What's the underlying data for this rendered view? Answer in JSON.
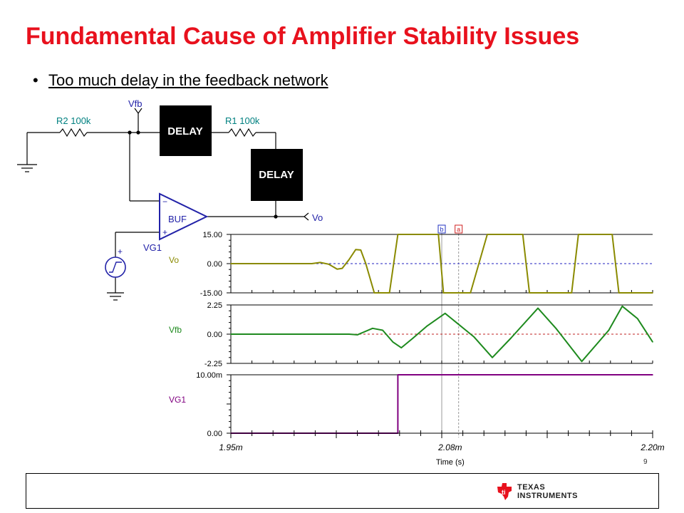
{
  "slide": {
    "title": "Fundamental Cause of Amplifier Stability Issues",
    "bullet": "Too much delay in the feedback network",
    "page_number": "9"
  },
  "schematic": {
    "r2_label": "R2 100k",
    "r1_label": "R1 100k",
    "vfb_label": "Vfb",
    "vo_label": "Vo",
    "delay_label": "DELAY",
    "buf_label": "BUF",
    "vg1_label": "VG1",
    "minus_sign": "−",
    "plus_sign": "+",
    "source_plus": "+"
  },
  "logo": {
    "line1": "TEXAS",
    "line2": "INSTRUMENTS"
  },
  "colors": {
    "title": "#e8111d",
    "vo": "#8a8a00",
    "vfb": "#1e8a1e",
    "vg1": "#800080",
    "schematic_blue": "#2222a8",
    "teal_labels": "#008080",
    "cursor_a": "#d02020",
    "cursor_b": "#2030c0"
  },
  "chart_data": {
    "type": "line",
    "xlabel": "Time (s)",
    "xlim": [
      0.00195,
      0.0022
    ],
    "x_tick_labels": [
      {
        "value": 0.00195,
        "label": "1.95m"
      },
      {
        "value": 0.00208,
        "label": "2.08m"
      },
      {
        "value": 0.0022,
        "label": "2.20m"
      }
    ],
    "cursors": [
      {
        "label": "b",
        "x": 0.002075,
        "color": "#2030c0"
      },
      {
        "label": "a",
        "x": 0.002085,
        "color": "#d02020"
      }
    ],
    "panels": [
      {
        "name": "Vo",
        "ylim": [
          -15,
          15
        ],
        "y_tick_labels": [
          "15.00",
          "0.00",
          "-15.00"
        ],
        "y_tick_values": [
          15,
          0,
          -15
        ],
        "zero_line_color": "#2020c0",
        "color": "#8a8a00",
        "x": [
          0.00195,
          0.001998,
          0.002003,
          0.002008,
          0.002013,
          0.002016,
          0.00202,
          0.002024,
          0.002027,
          0.00203,
          0.002035,
          0.002039,
          0.002044,
          0.002049,
          0.002053,
          0.002059,
          0.002065,
          0.002073,
          0.002076,
          0.002082,
          0.002089,
          0.002092,
          0.002102,
          0.002106,
          0.002123,
          0.002127,
          0.002152,
          0.002156,
          0.002176,
          0.00218,
          0.0022
        ],
        "y": [
          0,
          0,
          0.6,
          -0.3,
          -2.8,
          -2.4,
          2,
          7.2,
          7,
          0,
          -15,
          -15,
          -15,
          15,
          15,
          15,
          15,
          15,
          -15,
          -15,
          -15,
          -15,
          15,
          15,
          15,
          -15,
          -15,
          15,
          15,
          -15,
          -15
        ]
      },
      {
        "name": "Vfb",
        "ylim": [
          -2.25,
          2.25
        ],
        "y_tick_labels": [
          "2.25",
          "0.00",
          "-2.25"
        ],
        "y_tick_values": [
          2.25,
          0,
          -2.25
        ],
        "zero_line_color": "#c02020",
        "color": "#1e8a1e",
        "x": [
          0.00195,
          0.00202,
          0.002025,
          0.002034,
          0.00204,
          0.002046,
          0.002051,
          0.002058,
          0.002066,
          0.002077,
          0.002094,
          0.002105,
          0.002116,
          0.002132,
          0.002143,
          0.002158,
          0.002174,
          0.002182,
          0.002191,
          0.0022
        ],
        "y": [
          0,
          0,
          -0.05,
          0.45,
          0.3,
          -0.6,
          -1.05,
          -0.3,
          0.6,
          1.6,
          -0.2,
          -1.8,
          -0.3,
          2.0,
          0.4,
          -2.1,
          0.3,
          2.15,
          1.2,
          -0.6
        ]
      },
      {
        "name": "VG1",
        "ylim": [
          0,
          0.01
        ],
        "y_tick_labels": [
          "10.00m",
          "0.00"
        ],
        "y_tick_values": [
          0.01,
          0
        ],
        "zero_line_color": "",
        "color": "#800080",
        "x": [
          0.00195,
          0.002049,
          0.002049,
          0.0022
        ],
        "y": [
          0,
          0,
          0.01,
          0.01
        ]
      }
    ]
  }
}
